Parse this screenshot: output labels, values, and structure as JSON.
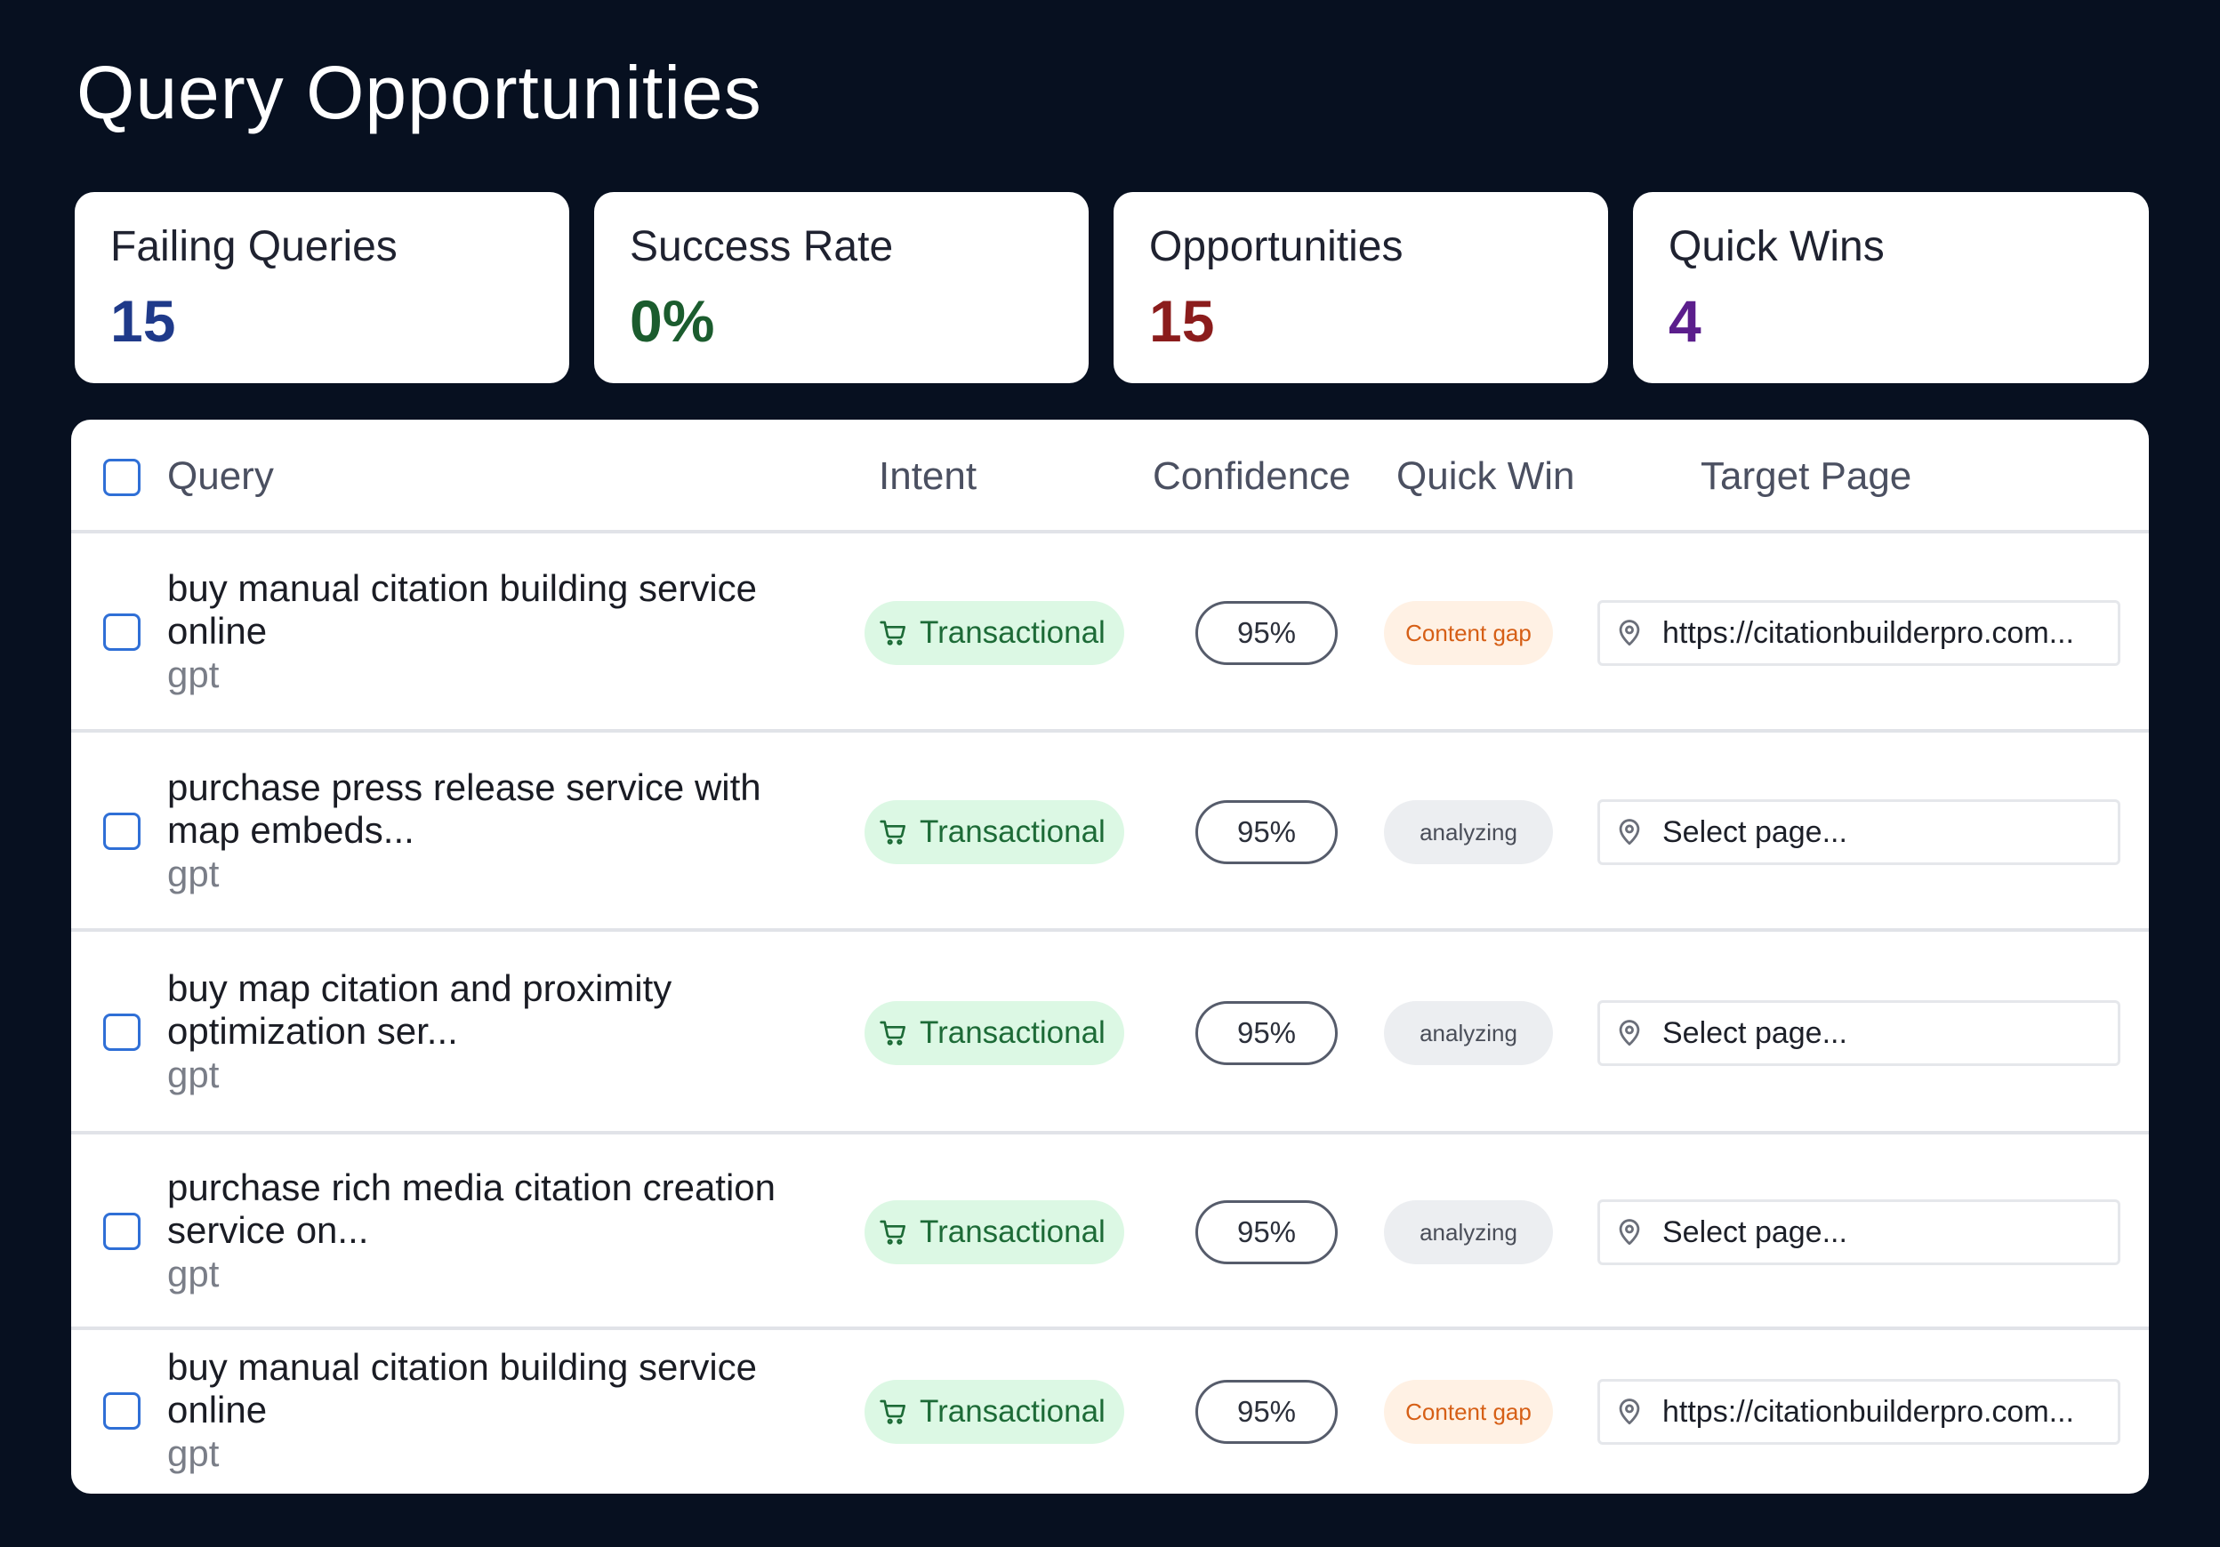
{
  "page": {
    "title": "Query Opportunities"
  },
  "stats": [
    {
      "label": "Failing Queries",
      "value": "15",
      "color": "#1f3a8a"
    },
    {
      "label": "Success Rate",
      "value": "0%",
      "color": "#1b5c2e"
    },
    {
      "label": "Opportunities",
      "value": "15",
      "color": "#8b1c1c"
    },
    {
      "label": "Quick Wins",
      "value": "4",
      "color": "#5b1e8c"
    }
  ],
  "table": {
    "columns": {
      "query": "Query",
      "intent": "Intent",
      "confidence": "Confidence",
      "quick_win": "Quick Win",
      "target_page": "Target Page"
    },
    "rows": [
      {
        "query": "buy manual citation building service online",
        "source": "gpt",
        "intent": "Transactional",
        "intent_icon": "shopping-cart-icon",
        "confidence": "95%",
        "quick_win": "Content gap",
        "quick_win_status": "gap",
        "target_page": "https://citationbuilderpro.com...",
        "target_is_placeholder": false
      },
      {
        "query": "purchase press release service with map embeds...",
        "source": "gpt",
        "intent": "Transactional",
        "intent_icon": "shopping-cart-icon",
        "confidence": "95%",
        "quick_win": "analyzing",
        "quick_win_status": "analyzing",
        "target_page": "Select page...",
        "target_is_placeholder": true
      },
      {
        "query": "buy map citation and proximity optimization ser...",
        "source": "gpt",
        "intent": "Transactional",
        "intent_icon": "shopping-cart-icon",
        "confidence": "95%",
        "quick_win": "analyzing",
        "quick_win_status": "analyzing",
        "target_page": "Select page...",
        "target_is_placeholder": true
      },
      {
        "query": "purchase rich media citation creation service on...",
        "source": "gpt",
        "intent": "Transactional",
        "intent_icon": "shopping-cart-icon",
        "confidence": "95%",
        "quick_win": "analyzing",
        "quick_win_status": "analyzing",
        "target_page": "Select page...",
        "target_is_placeholder": true
      },
      {
        "query": "buy manual citation building service online",
        "source": "gpt",
        "intent": "Transactional",
        "intent_icon": "shopping-cart-icon",
        "confidence": "95%",
        "quick_win": "Content gap",
        "quick_win_status": "gap",
        "target_page": "https://citationbuilderpro.com...",
        "target_is_placeholder": false
      }
    ]
  },
  "icons": {
    "select_all": "checkbox-icon",
    "target": "map-pin-icon"
  }
}
